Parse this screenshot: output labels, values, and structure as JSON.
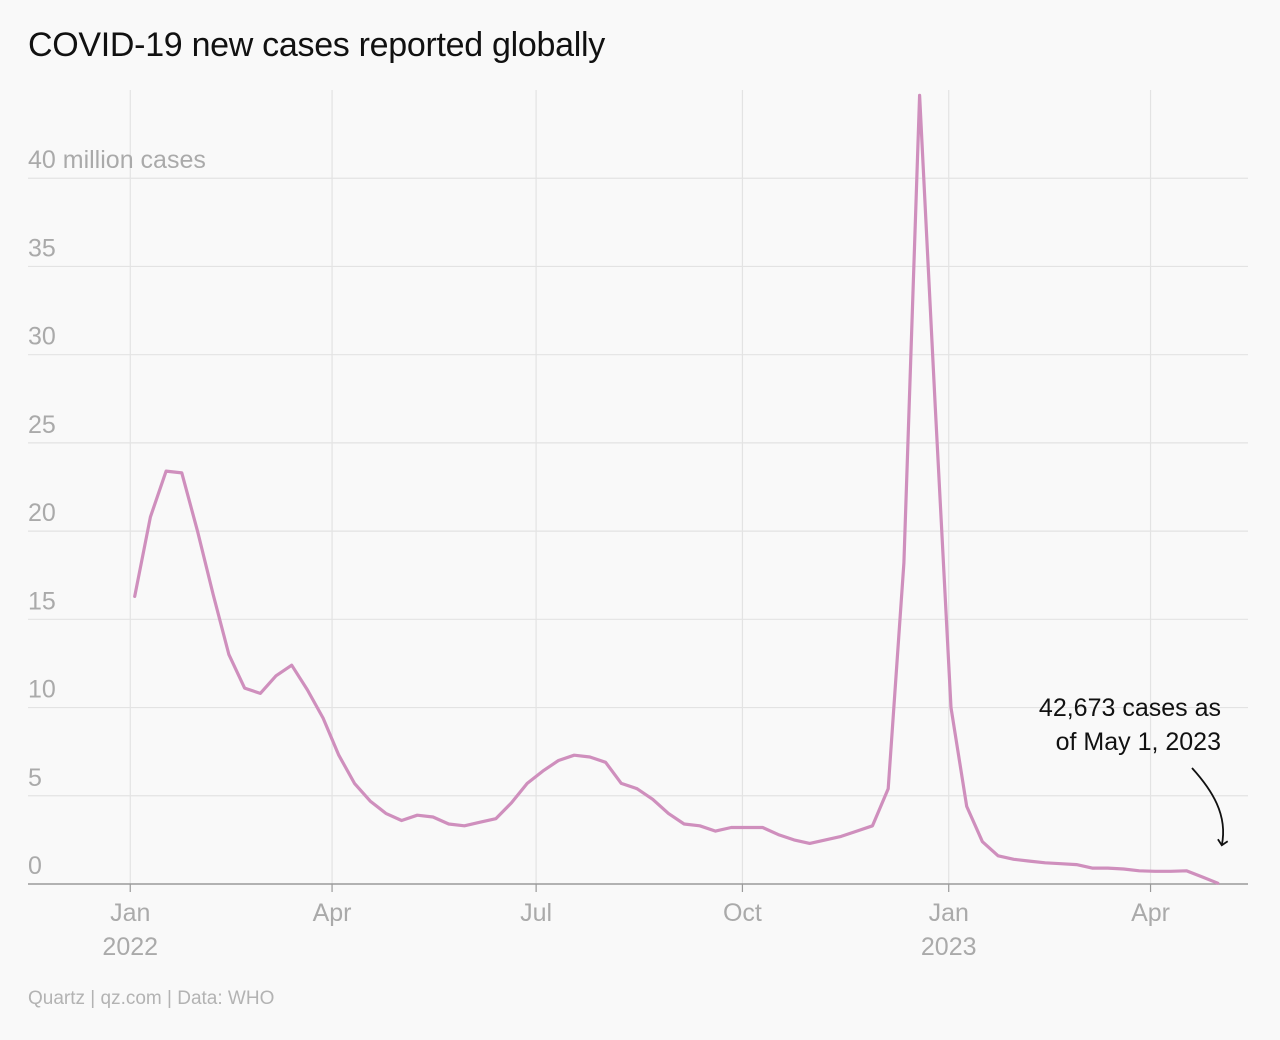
{
  "title": "COVID-19 new cases reported globally",
  "source": "Quartz | qz.com | Data: WHO",
  "colors": {
    "line": "#cf8fbd",
    "grid": "#e3e3e3",
    "axis": "#9a9a9a",
    "tick_label": "#aaaaaa",
    "annotation": "#111111",
    "background": "#f9f9f9"
  },
  "chart_data": {
    "type": "line",
    "title": "COVID-19 new cases reported globally",
    "y_unit": "million cases",
    "ylim": [
      0,
      45
    ],
    "y_ticks": [
      {
        "value": 0,
        "label": "0"
      },
      {
        "value": 5,
        "label": "5"
      },
      {
        "value": 10,
        "label": "10"
      },
      {
        "value": 15,
        "label": "15"
      },
      {
        "value": 20,
        "label": "20"
      },
      {
        "value": 25,
        "label": "25"
      },
      {
        "value": 30,
        "label": "30"
      },
      {
        "value": 35,
        "label": "35"
      },
      {
        "value": 40,
        "label": "40 million cases"
      }
    ],
    "xlim": [
      "2021-12-31",
      "2023-05-10"
    ],
    "x_ticks": [
      {
        "date": "2022-01-01",
        "label": "Jan",
        "sublabel": "2022"
      },
      {
        "date": "2022-04-01",
        "label": "Apr",
        "sublabel": ""
      },
      {
        "date": "2022-07-01",
        "label": "Jul",
        "sublabel": ""
      },
      {
        "date": "2022-10-01",
        "label": "Oct",
        "sublabel": ""
      },
      {
        "date": "2023-01-01",
        "label": "Jan",
        "sublabel": "2023"
      },
      {
        "date": "2023-04-01",
        "label": "Apr",
        "sublabel": ""
      }
    ],
    "grid": true,
    "series": [
      {
        "points": [
          [
            "2022-01-03",
            16.3
          ],
          [
            "2022-01-10",
            20.8
          ],
          [
            "2022-01-17",
            23.4
          ],
          [
            "2022-01-24",
            23.3
          ],
          [
            "2022-01-31",
            20.0
          ],
          [
            "2022-02-07",
            16.4
          ],
          [
            "2022-02-14",
            13.0
          ],
          [
            "2022-02-21",
            11.1
          ],
          [
            "2022-02-28",
            10.8
          ],
          [
            "2022-03-07",
            11.8
          ],
          [
            "2022-03-14",
            12.4
          ],
          [
            "2022-03-21",
            11.0
          ],
          [
            "2022-03-28",
            9.4
          ],
          [
            "2022-04-04",
            7.3
          ],
          [
            "2022-04-11",
            5.7
          ],
          [
            "2022-04-18",
            4.7
          ],
          [
            "2022-04-25",
            4.0
          ],
          [
            "2022-05-02",
            3.6
          ],
          [
            "2022-05-09",
            3.9
          ],
          [
            "2022-05-16",
            3.8
          ],
          [
            "2022-05-23",
            3.4
          ],
          [
            "2022-05-30",
            3.3
          ],
          [
            "2022-06-06",
            3.5
          ],
          [
            "2022-06-13",
            3.7
          ],
          [
            "2022-06-20",
            4.6
          ],
          [
            "2022-06-27",
            5.7
          ],
          [
            "2022-07-04",
            6.4
          ],
          [
            "2022-07-11",
            7.0
          ],
          [
            "2022-07-18",
            7.3
          ],
          [
            "2022-07-25",
            7.2
          ],
          [
            "2022-08-01",
            6.9
          ],
          [
            "2022-08-08",
            5.7
          ],
          [
            "2022-08-15",
            5.4
          ],
          [
            "2022-08-22",
            4.8
          ],
          [
            "2022-08-29",
            4.0
          ],
          [
            "2022-09-05",
            3.4
          ],
          [
            "2022-09-12",
            3.3
          ],
          [
            "2022-09-19",
            3.0
          ],
          [
            "2022-09-26",
            3.2
          ],
          [
            "2022-10-03",
            3.2
          ],
          [
            "2022-10-10",
            3.2
          ],
          [
            "2022-10-17",
            2.8
          ],
          [
            "2022-10-24",
            2.5
          ],
          [
            "2022-10-31",
            2.3
          ],
          [
            "2022-11-07",
            2.5
          ],
          [
            "2022-11-14",
            2.7
          ],
          [
            "2022-11-21",
            3.0
          ],
          [
            "2022-11-28",
            3.3
          ],
          [
            "2022-12-05",
            5.4
          ],
          [
            "2022-12-12",
            18.2
          ],
          [
            "2022-12-19",
            44.7
          ],
          [
            "2022-12-26",
            27.0
          ],
          [
            "2023-01-02",
            10.0
          ],
          [
            "2023-01-09",
            4.4
          ],
          [
            "2023-01-16",
            2.4
          ],
          [
            "2023-01-23",
            1.6
          ],
          [
            "2023-01-30",
            1.4
          ],
          [
            "2023-02-06",
            1.3
          ],
          [
            "2023-02-13",
            1.2
          ],
          [
            "2023-02-20",
            1.15
          ],
          [
            "2023-02-27",
            1.1
          ],
          [
            "2023-03-06",
            0.9
          ],
          [
            "2023-03-13",
            0.9
          ],
          [
            "2023-03-20",
            0.85
          ],
          [
            "2023-03-27",
            0.75
          ],
          [
            "2023-04-03",
            0.72
          ],
          [
            "2023-04-10",
            0.72
          ],
          [
            "2023-04-17",
            0.75
          ],
          [
            "2023-04-24",
            0.4
          ],
          [
            "2023-05-01",
            0.043
          ]
        ]
      }
    ],
    "annotations": [
      {
        "lines": [
          "42,673 cases as",
          "of May 1, 2023"
        ],
        "target": [
          "2023-05-01",
          0.043
        ]
      }
    ]
  }
}
